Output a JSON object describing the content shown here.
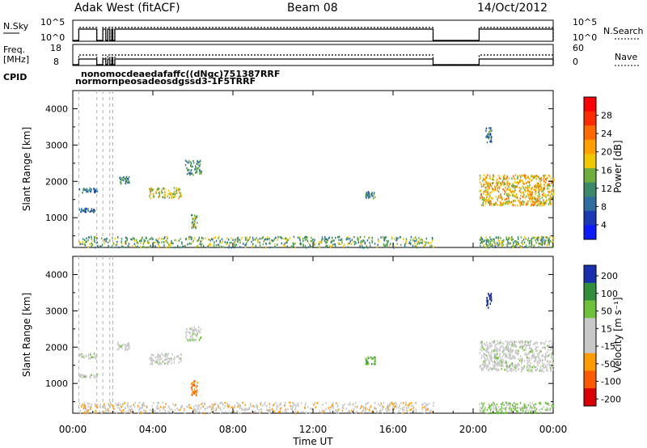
{
  "header": {
    "station": "Adak West (fitACF)",
    "beam": "Beam 08",
    "date": "14/Oct/2012"
  },
  "top_panels": {
    "nsky_label": "N.Sky",
    "nsky_ticks": [
      "10^5",
      "10^0"
    ],
    "nsearch_label": "N.Search",
    "nsearch_ticks": [
      "10^5",
      "10^0"
    ],
    "freq_label": "Freq.",
    "freq_unit": "[MHz]",
    "freq_ticks": [
      "18",
      "8"
    ],
    "nave_label": "Nave",
    "nave_ticks": [
      "60",
      "0"
    ],
    "cpid_label": "CPID",
    "cpid_upper": "nonomocdeaedafaffc((dNgc)751387RRF",
    "cpid_lower": "normornpeosadeosdgssd3-1F5TRRF"
  },
  "axes": {
    "y_label": "Slant Range [km]",
    "y_ticks": [
      "4000",
      "3000",
      "2000",
      "1000"
    ],
    "x_label": "Time UT",
    "x_ticks": [
      "00:00",
      "04:00",
      "08:00",
      "12:00",
      "16:00",
      "20:00",
      "00:00"
    ]
  },
  "colorbars": {
    "power": {
      "label": "Power [dB]",
      "ticks": [
        "28",
        "24",
        "20",
        "16",
        "12",
        "8",
        "4"
      ]
    },
    "velocity": {
      "label": "Velocity [m s⁻¹]",
      "ticks": [
        "200",
        "100",
        "50",
        "15",
        "-15",
        "-50",
        "-100",
        "-200"
      ]
    }
  },
  "chart_data": [
    {
      "type": "line",
      "panel": "N.Sky / N.Search",
      "x_unit": "hours UT",
      "y_scale": "log",
      "segments_on": [
        [
          0.3,
          1.2
        ],
        [
          1.5,
          1.65
        ],
        [
          1.75,
          1.85
        ],
        [
          1.95,
          2.0
        ],
        [
          2.1,
          18.0
        ],
        [
          20.3,
          24.0
        ]
      ],
      "level": "high"
    },
    {
      "type": "line",
      "panel": "Freq. / Nave",
      "x_unit": "hours UT",
      "freq_mhz_approx": 11,
      "segments_on": [
        [
          0.3,
          1.2
        ],
        [
          1.5,
          1.65
        ],
        [
          1.75,
          1.85
        ],
        [
          1.95,
          2.0
        ],
        [
          2.1,
          18.0
        ],
        [
          20.3,
          24.0
        ]
      ]
    },
    {
      "type": "heatmap",
      "panel": "Power",
      "x_unit": "hours UT",
      "y_unit": "km",
      "xlim": [
        0,
        24
      ],
      "ylim": [
        180,
        4500
      ],
      "zlim": [
        0,
        30
      ],
      "colorscale": [
        "#0a1cff",
        "#1a3ab5",
        "#2a6fa0",
        "#3a8a6a",
        "#6fae3c",
        "#f0c800",
        "#ffa000",
        "#ff6a00",
        "#ff2a00",
        "#ff0000"
      ],
      "echo_regions": [
        {
          "t": [
            0.3,
            1.2
          ],
          "r": [
            1700,
            1850
          ],
          "z": 8
        },
        {
          "t": [
            0.3,
            1.2
          ],
          "r": [
            1180,
            1280
          ],
          "z": 6
        },
        {
          "t": [
            2.2,
            2.8
          ],
          "r": [
            1950,
            2150
          ],
          "z": 10
        },
        {
          "t": [
            3.8,
            5.4
          ],
          "r": [
            1550,
            1850
          ],
          "z": 16
        },
        {
          "t": [
            5.6,
            6.4
          ],
          "r": [
            2200,
            2600
          ],
          "z": 10
        },
        {
          "t": [
            5.9,
            6.2
          ],
          "r": [
            700,
            1100
          ],
          "z": 14
        },
        {
          "t": [
            14.6,
            15.1
          ],
          "r": [
            1550,
            1750
          ],
          "z": 10
        },
        {
          "t": [
            20.6,
            20.9
          ],
          "r": [
            3100,
            3500
          ],
          "z": 8
        },
        {
          "t": [
            20.3,
            24.0
          ],
          "r": [
            1350,
            2200
          ],
          "z": 18
        },
        {
          "t": [
            0.3,
            18.0
          ],
          "r": [
            200,
            500
          ],
          "z": 12
        },
        {
          "t": [
            20.3,
            24.0
          ],
          "r": [
            200,
            500
          ],
          "z": 12
        }
      ]
    },
    {
      "type": "heatmap",
      "panel": "Velocity",
      "x_unit": "hours UT",
      "y_unit": "m/s",
      "xlim": [
        0,
        24
      ],
      "ylim": [
        180,
        4500
      ],
      "zlim": [
        -250,
        250
      ],
      "colorscale": [
        "#dd0000",
        "#ff5a00",
        "#ff9a00",
        "#c8c8c8",
        "#c8c8c8",
        "#6ec23a",
        "#2f8f3a",
        "#1a2fb0"
      ],
      "echo_regions": [
        {
          "t": [
            0.3,
            1.2
          ],
          "r": [
            1700,
            1850
          ],
          "v": 0
        },
        {
          "t": [
            0.3,
            1.2
          ],
          "r": [
            1180,
            1280
          ],
          "v": 0
        },
        {
          "t": [
            2.2,
            2.8
          ],
          "r": [
            1950,
            2150
          ],
          "v": 0
        },
        {
          "t": [
            3.8,
            5.4
          ],
          "r": [
            1550,
            1850
          ],
          "v": 0
        },
        {
          "t": [
            5.6,
            6.4
          ],
          "r": [
            2200,
            2600
          ],
          "v": 0
        },
        {
          "t": [
            5.9,
            6.2
          ],
          "r": [
            700,
            1100
          ],
          "v": -100
        },
        {
          "t": [
            14.6,
            15.1
          ],
          "r": [
            1550,
            1750
          ],
          "v": 40
        },
        {
          "t": [
            20.6,
            20.9
          ],
          "r": [
            3100,
            3500
          ],
          "v": 200
        },
        {
          "t": [
            20.3,
            24.0
          ],
          "r": [
            1350,
            2200
          ],
          "v": 0
        },
        {
          "t": [
            0.3,
            18.0
          ],
          "r": [
            200,
            500
          ],
          "v": -40
        },
        {
          "t": [
            20.3,
            24.0
          ],
          "r": [
            200,
            500
          ],
          "v": 20
        }
      ]
    }
  ]
}
